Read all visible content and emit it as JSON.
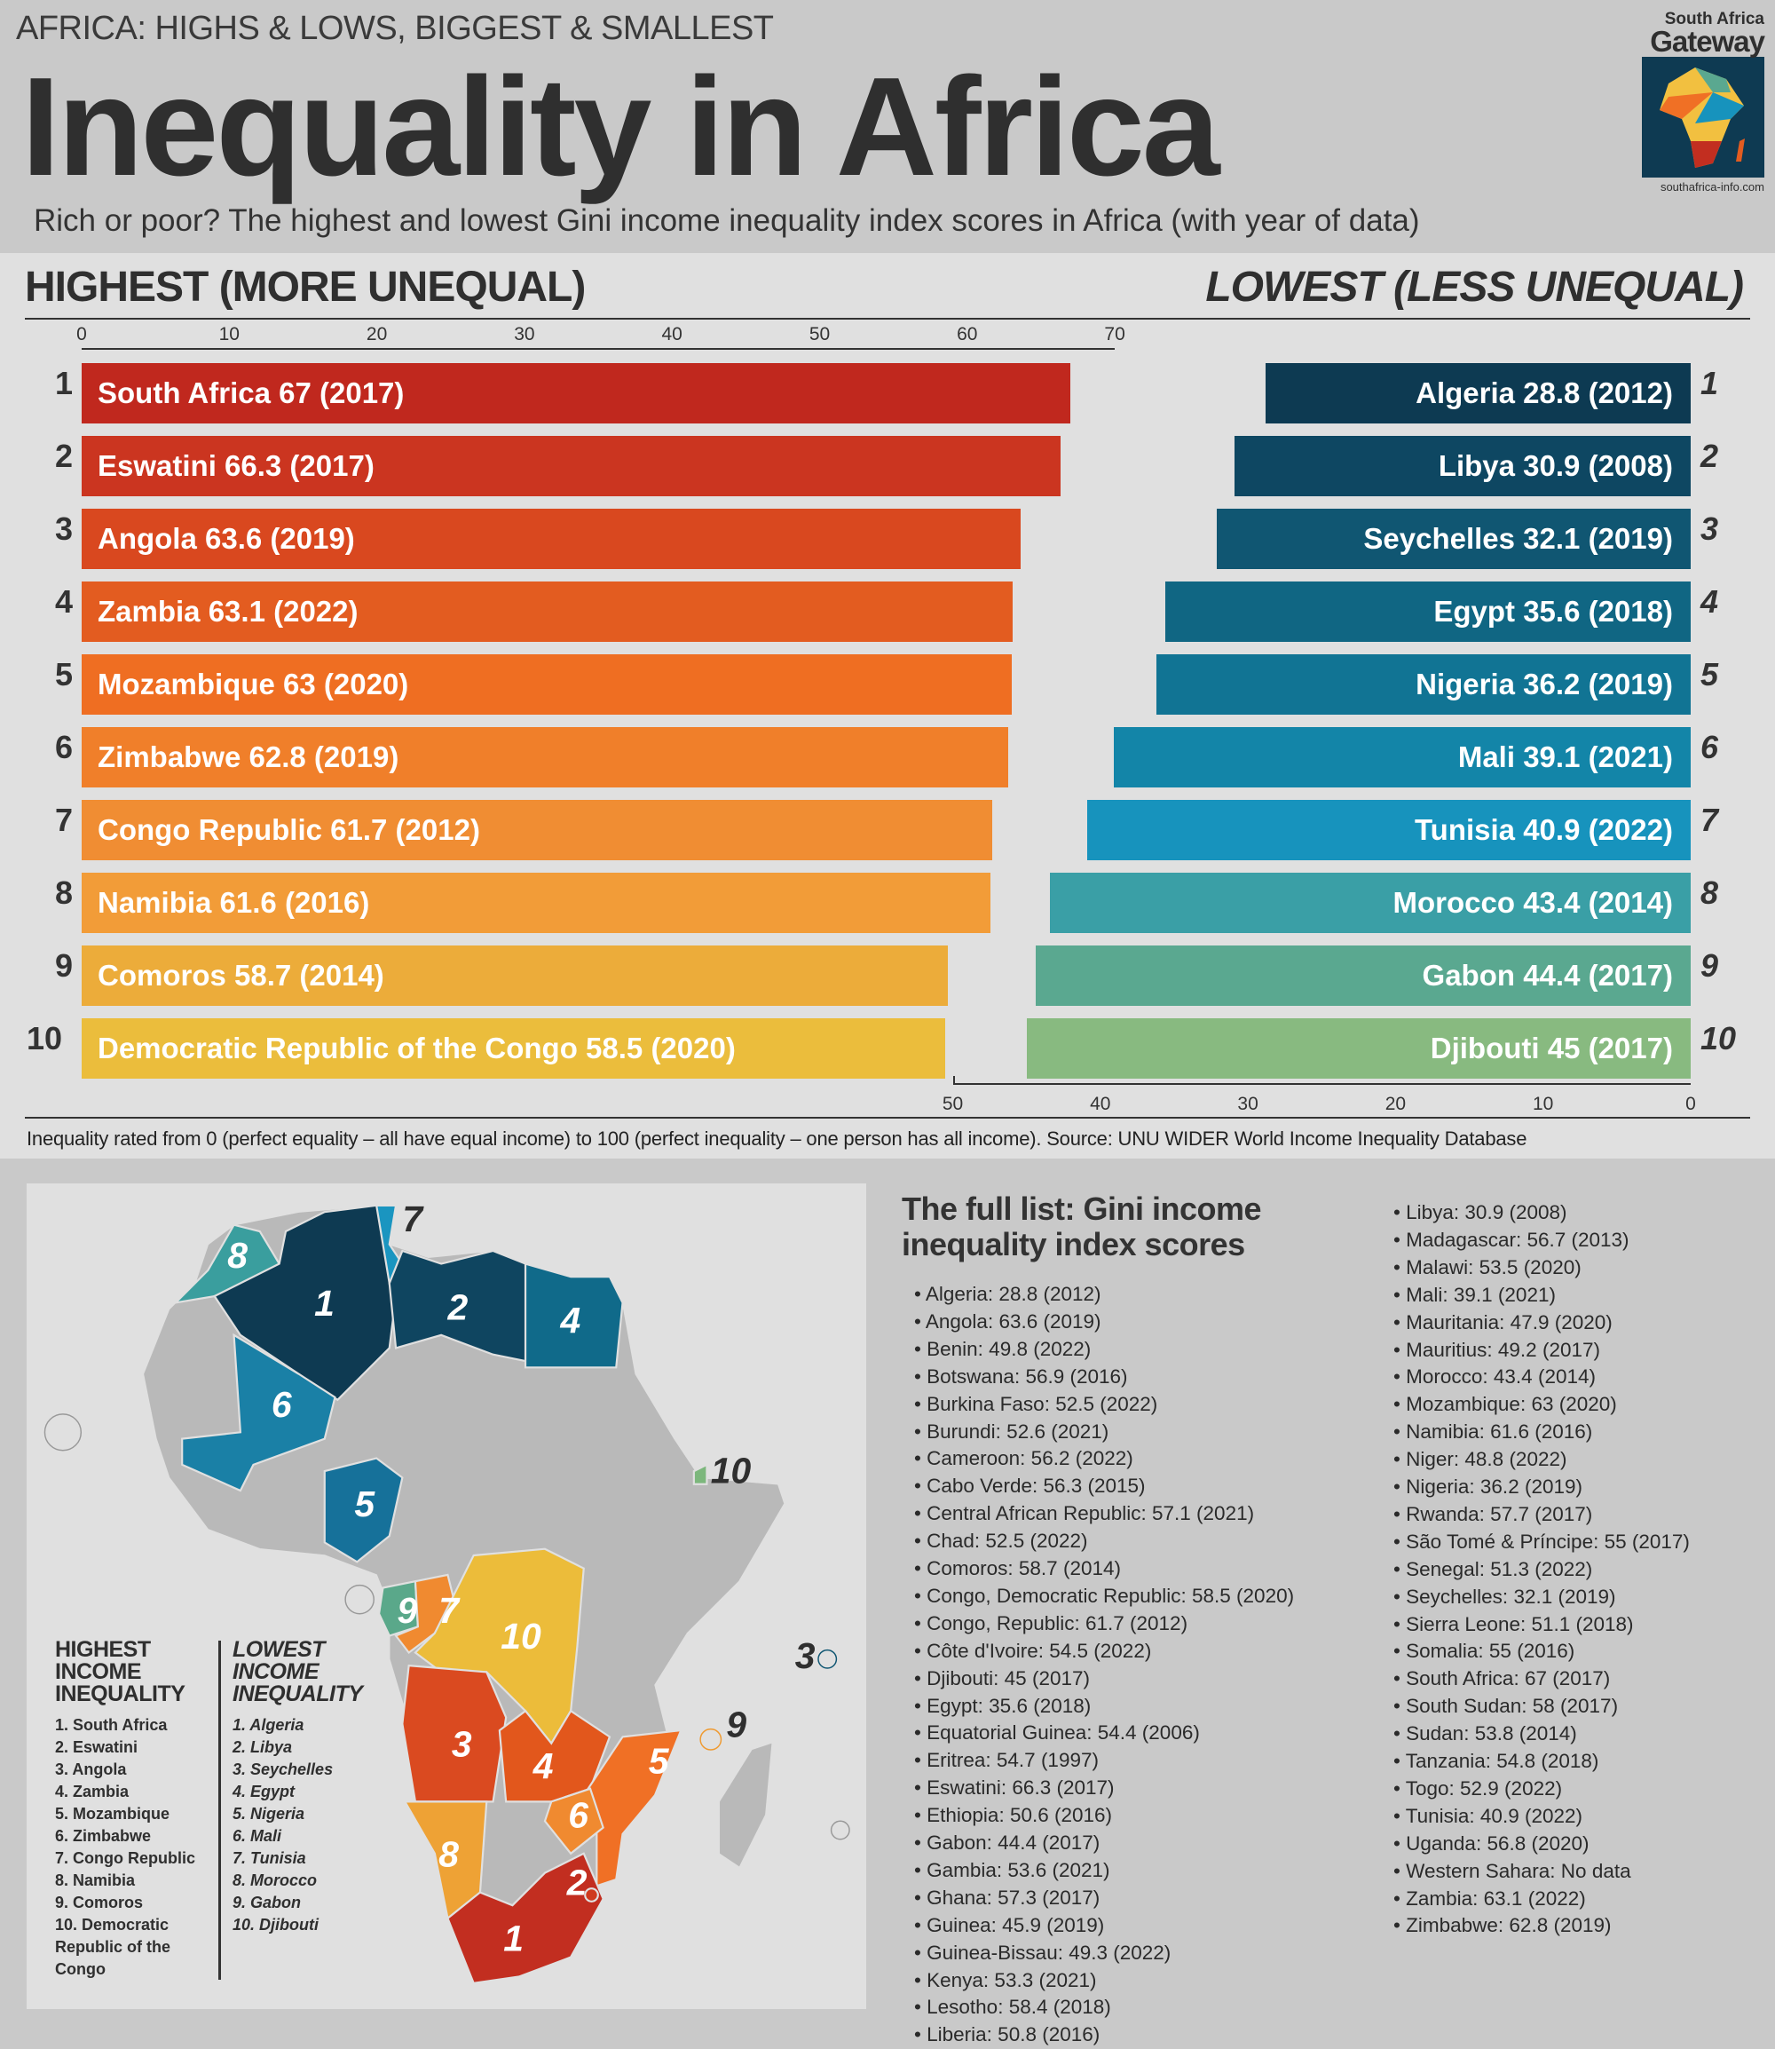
{
  "header": {
    "kicker": "AFRICA: HIGHS & LOWS, BIGGEST & SMALLEST",
    "title": "Inequality in Africa",
    "subtitle": "Rich or poor? The highest and lowest Gini income inequality index scores in Africa (with year of data)",
    "logo": {
      "line1": "South Africa",
      "line2": "Gateway",
      "url": "southafrica-info.com"
    }
  },
  "chart_data": [
    {
      "type": "bar",
      "title": "HIGHEST (MORE UNEQUAL)",
      "orientation": "horizontal",
      "xlim": [
        0,
        70
      ],
      "ticks": [
        "0",
        "10",
        "20",
        "30",
        "40",
        "50",
        "60",
        "70"
      ],
      "colors": [
        "#c0281e",
        "#cb3520",
        "#d9481f",
        "#e35c20",
        "#ef6e22",
        "#f07f2a",
        "#f08d33",
        "#f29c38",
        "#ecac3a",
        "#ebbd3c"
      ],
      "bars": [
        {
          "rank": "1",
          "name": "South Africa",
          "value": 67,
          "year": "2017"
        },
        {
          "rank": "2",
          "name": "Eswatini",
          "value": 66.3,
          "year": "2017"
        },
        {
          "rank": "3",
          "name": "Angola",
          "value": 63.6,
          "year": "2019"
        },
        {
          "rank": "4",
          "name": "Zambia",
          "value": 63.1,
          "year": "2022"
        },
        {
          "rank": "5",
          "name": "Mozambique",
          "value": 63,
          "year": "2020"
        },
        {
          "rank": "6",
          "name": "Zimbabwe",
          "value": 62.8,
          "year": "2019"
        },
        {
          "rank": "7",
          "name": "Congo Republic",
          "value": 61.7,
          "year": "2012"
        },
        {
          "rank": "8",
          "name": "Namibia",
          "value": 61.6,
          "year": "2016"
        },
        {
          "rank": "9",
          "name": "Comoros",
          "value": 58.7,
          "year": "2014"
        },
        {
          "rank": "10",
          "name": "Democratic Republic of the Congo",
          "value": 58.5,
          "year": "2020"
        }
      ]
    },
    {
      "type": "bar",
      "title": "LOWEST (LESS UNEQUAL)",
      "orientation": "horizontal",
      "direction": "reversed",
      "xlim": [
        0,
        50
      ],
      "ticks": [
        "50",
        "40",
        "30",
        "20",
        "10",
        "0"
      ],
      "colors": [
        "#0d3a52",
        "#0e4762",
        "#105672",
        "#106683",
        "#117494",
        "#1385a8",
        "#1793bd",
        "#3a9fa6",
        "#5aa890",
        "#88ba80"
      ],
      "bars": [
        {
          "rank": "1",
          "name": "Algeria",
          "value": 28.8,
          "year": "2012"
        },
        {
          "rank": "2",
          "name": "Libya",
          "value": 30.9,
          "year": "2008"
        },
        {
          "rank": "3",
          "name": "Seychelles",
          "value": 32.1,
          "year": "2019"
        },
        {
          "rank": "4",
          "name": "Egypt",
          "value": 35.6,
          "year": "2018"
        },
        {
          "rank": "5",
          "name": "Nigeria",
          "value": 36.2,
          "year": "2019"
        },
        {
          "rank": "6",
          "name": "Mali",
          "value": 39.1,
          "year": "2021"
        },
        {
          "rank": "7",
          "name": "Tunisia",
          "value": 40.9,
          "year": "2022"
        },
        {
          "rank": "8",
          "name": "Morocco",
          "value": 43.4,
          "year": "2014"
        },
        {
          "rank": "9",
          "name": "Gabon",
          "value": 44.4,
          "year": "2017"
        },
        {
          "rank": "10",
          "name": "Djibouti",
          "value": 45,
          "year": "2017"
        }
      ]
    }
  ],
  "footnote": "Inequality rated from 0 (perfect equality – all have equal income) to 100 (perfect inequality – one person has all income). Source: UNU WIDER World Income Inequality Database",
  "map": {
    "legend_high": {
      "title": "HIGHEST INCOME INEQUALITY",
      "items": [
        "1. South Africa",
        "2. Eswatini",
        "3. Angola",
        "4. Zambia",
        "5. Mozambique",
        "6. Zimbabwe",
        "7. Congo Republic",
        "8. Namibia",
        "9. Comoros",
        "10. Democratic Republic of the Congo"
      ]
    },
    "legend_low": {
      "title": "LOWEST INCOME INEQUALITY",
      "items": [
        "1. Algeria",
        "2. Libya",
        "3. Seychelles",
        "4. Egypt",
        "5. Nigeria",
        "6. Mali",
        "7. Tunisia",
        "8. Morocco",
        "9. Gabon",
        "10. Djibouti"
      ]
    },
    "labels": {
      "algeria": "1",
      "libya": "2",
      "seychelles": "3",
      "egypt": "4",
      "nigeria": "5",
      "mali": "6",
      "tunisia": "7",
      "morocco": "8",
      "gabon": "9",
      "djibouti": "10",
      "south_africa": "1",
      "eswatini": "2",
      "angola": "3",
      "zambia": "4",
      "mozambique": "5",
      "zimbabwe": "6",
      "congo_rep": "7",
      "namibia": "8",
      "comoros": "9",
      "drc": "10"
    }
  },
  "full_list": {
    "title": "The full list: Gini income inequality index scores",
    "items": [
      "Algeria: 28.8 (2012)",
      "Angola: 63.6 (2019)",
      "Benin: 49.8 (2022)",
      "Botswana: 56.9 (2016)",
      "Burkina Faso: 52.5 (2022)",
      "Burundi: 52.6 (2021)",
      "Cameroon: 56.2 (2022)",
      "Cabo Verde: 56.3 (2015)",
      "Central African Republic: 57.1 (2021)",
      "Chad: 52.5 (2022)",
      "Comoros: 58.7 (2014)",
      "Congo, Democratic Republic: 58.5 (2020)",
      "Congo, Republic: 61.7 (2012)",
      "Côte d'Ivoire: 54.5 (2022)",
      "Djibouti: 45 (2017)",
      "Egypt: 35.6 (2018)",
      "Equatorial Guinea: 54.4 (2006)",
      "Eritrea: 54.7 (1997)",
      "Eswatini: 66.3 (2017)",
      "Ethiopia: 50.6 (2016)",
      "Gabon: 44.4 (2017)",
      "Gambia: 53.6 (2021)",
      "Ghana: 57.3 (2017)",
      "Guinea: 45.9 (2019)",
      "Guinea-Bissau: 49.3 (2022)",
      "Kenya: 53.3 (2021)",
      "Lesotho: 58.4 (2018)",
      "Liberia: 50.8 (2016)",
      "Libya: 30.9 (2008)",
      "Madagascar: 56.7 (2013)",
      "Malawi: 53.5 (2020)",
      "Mali: 39.1 (2021)",
      "Mauritania: 47.9 (2020)",
      "Mauritius: 49.2 (2017)",
      "Morocco: 43.4 (2014)",
      "Mozambique: 63 (2020)",
      "Namibia: 61.6 (2016)",
      "Niger: 48.8 (2022)",
      "Nigeria: 36.2 (2019)",
      "Rwanda: 57.7 (2017)",
      "São Tomé & Príncipe: 55 (2017)",
      "Senegal: 51.3 (2022)",
      "Seychelles: 32.1 (2019)",
      "Sierra Leone: 51.1 (2018)",
      "Somalia: 55 (2016)",
      "South Africa: 67 (2017)",
      "South Sudan: 58 (2017)",
      "Sudan: 53.8 (2014)",
      "Tanzania: 54.8 (2018)",
      "Togo: 52.9 (2022)",
      "Tunisia: 40.9 (2022)",
      "Uganda: 56.8 (2020)",
      "Western Sahara: No data",
      "Zambia: 63.1 (2022)",
      "Zimbabwe: 62.8 (2019)"
    ]
  }
}
